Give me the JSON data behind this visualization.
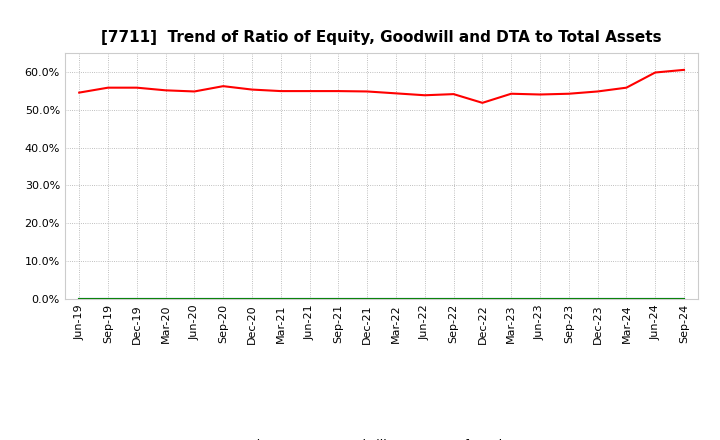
{
  "title": "[7711]  Trend of Ratio of Equity, Goodwill and DTA to Total Assets",
  "x_labels": [
    "Jun-19",
    "Sep-19",
    "Dec-19",
    "Mar-20",
    "Jun-20",
    "Sep-20",
    "Dec-20",
    "Mar-21",
    "Jun-21",
    "Sep-21",
    "Dec-21",
    "Mar-22",
    "Jun-22",
    "Sep-22",
    "Dec-22",
    "Mar-23",
    "Jun-23",
    "Sep-23",
    "Dec-23",
    "Mar-24",
    "Jun-24",
    "Sep-24"
  ],
  "equity": [
    0.545,
    0.558,
    0.558,
    0.551,
    0.548,
    0.562,
    0.553,
    0.549,
    0.549,
    0.549,
    0.548,
    0.543,
    0.538,
    0.541,
    0.518,
    0.542,
    0.54,
    0.542,
    0.548,
    0.558,
    0.598,
    0.605
  ],
  "goodwill": [
    0.0,
    0.0,
    0.0,
    0.0,
    0.0,
    0.0,
    0.0,
    0.0,
    0.0,
    0.0,
    0.0,
    0.0,
    0.0,
    0.0,
    0.0,
    0.0,
    0.0,
    0.0,
    0.0,
    0.0,
    0.0,
    0.0
  ],
  "dta": [
    0.0,
    0.0,
    0.0,
    0.0,
    0.0,
    0.0,
    0.0,
    0.0,
    0.0,
    0.0,
    0.0,
    0.0,
    0.0,
    0.0,
    0.0,
    0.0,
    0.0,
    0.0,
    0.0,
    0.0,
    0.0,
    0.0
  ],
  "equity_color": "#FF0000",
  "goodwill_color": "#0000FF",
  "dta_color": "#008000",
  "ylim": [
    0.0,
    0.65
  ],
  "yticks": [
    0.0,
    0.1,
    0.2,
    0.3,
    0.4,
    0.5,
    0.6
  ],
  "background_color": "#FFFFFF",
  "plot_bg_color": "#FFFFFF",
  "grid_color": "#AAAAAA",
  "title_fontsize": 11,
  "axis_fontsize": 8,
  "legend_fontsize": 9
}
